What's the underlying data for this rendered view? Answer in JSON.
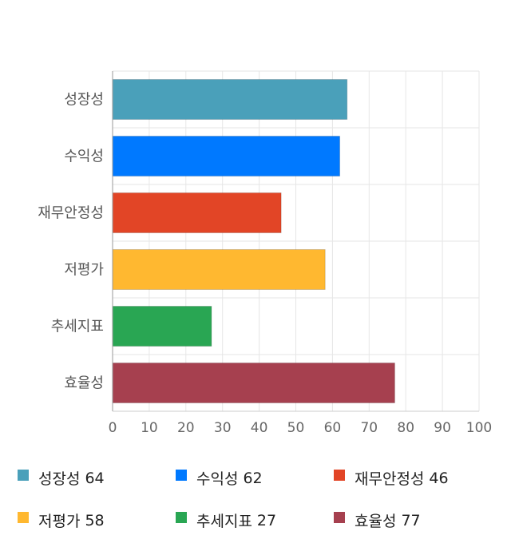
{
  "chart_data": {
    "type": "bar",
    "orientation": "horizontal",
    "categories": [
      "성장성",
      "수익성",
      "재무안정성",
      "저평가",
      "추세지표",
      "효율성"
    ],
    "values": [
      64,
      62,
      46,
      58,
      27,
      77
    ],
    "colors": [
      "#4aa0ba",
      "#0079ff",
      "#e24526",
      "#ffb830",
      "#29a653",
      "#a6404f"
    ],
    "xlim": [
      0,
      100
    ],
    "xticks": [
      "0",
      "10",
      "20",
      "30",
      "40",
      "50",
      "60",
      "70",
      "80",
      "90",
      "100"
    ],
    "grid": true,
    "legend_position": "bottom",
    "title": "",
    "xlabel": "",
    "ylabel": ""
  }
}
